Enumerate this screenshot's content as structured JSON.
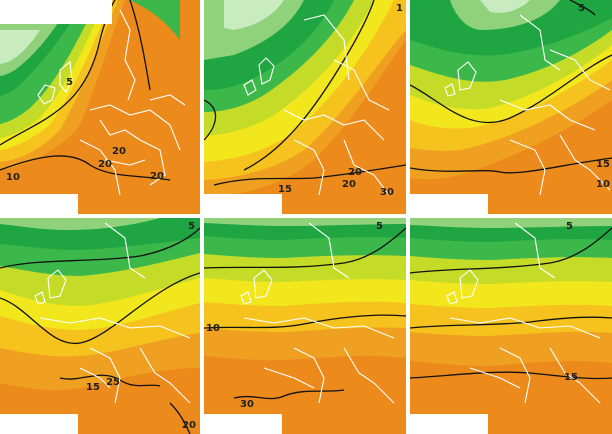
{
  "panels": [
    {
      "labels": [
        "5",
        "10",
        "20",
        "20",
        "20"
      ]
    },
    {
      "labels": [
        "1",
        "15",
        "20",
        "20",
        "30"
      ]
    },
    {
      "labels": [
        "5",
        "15",
        "10"
      ]
    },
    {
      "labels": [
        "5",
        "15",
        "25",
        "20"
      ]
    },
    {
      "labels": [
        "5",
        "10",
        "30"
      ]
    },
    {
      "labels": [
        "5",
        "15"
      ]
    }
  ],
  "colors": {
    "deep_green": "#1fa541",
    "green": "#3cb84a",
    "light_green": "#8fd27b",
    "pale_green": "#c8ecc0",
    "yellow_green": "#c4dc28",
    "yellow": "#f2e61c",
    "light_orange": "#f6c21e",
    "orange": "#f0a020",
    "deep_orange": "#ec8a1c",
    "contour": "#111111",
    "coastline": "#ffffff"
  }
}
